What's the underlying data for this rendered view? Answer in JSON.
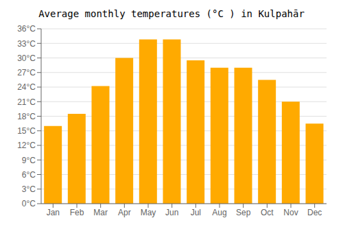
{
  "chart_data": {
    "type": "bar",
    "title": "Average monthly temperatures (°C ) in Kulpahār",
    "categories": [
      "Jan",
      "Feb",
      "Mar",
      "Apr",
      "May",
      "Jun",
      "Jul",
      "Aug",
      "Sep",
      "Oct",
      "Nov",
      "Dec"
    ],
    "values": [
      16.0,
      18.5,
      24.2,
      30.0,
      33.8,
      33.8,
      29.5,
      28.0,
      28.0,
      25.5,
      21.0,
      16.5
    ],
    "color": "#FFAA00",
    "ylim": [
      0,
      36
    ],
    "yticks": [
      {
        "value": 0,
        "label": "0°C"
      },
      {
        "value": 3,
        "label": "3°C"
      },
      {
        "value": 6,
        "label": "6°C"
      },
      {
        "value": 9,
        "label": "9°C"
      },
      {
        "value": 12,
        "label": "12°C"
      },
      {
        "value": 15,
        "label": "15°C"
      },
      {
        "value": 18,
        "label": "18°C"
      },
      {
        "value": 21,
        "label": "21°C"
      },
      {
        "value": 24,
        "label": "24°C"
      },
      {
        "value": 27,
        "label": "27°C"
      },
      {
        "value": 30,
        "label": "30°C"
      },
      {
        "value": 33,
        "label": "33°C"
      },
      {
        "value": 36,
        "label": "36°C"
      }
    ],
    "grid": true
  }
}
